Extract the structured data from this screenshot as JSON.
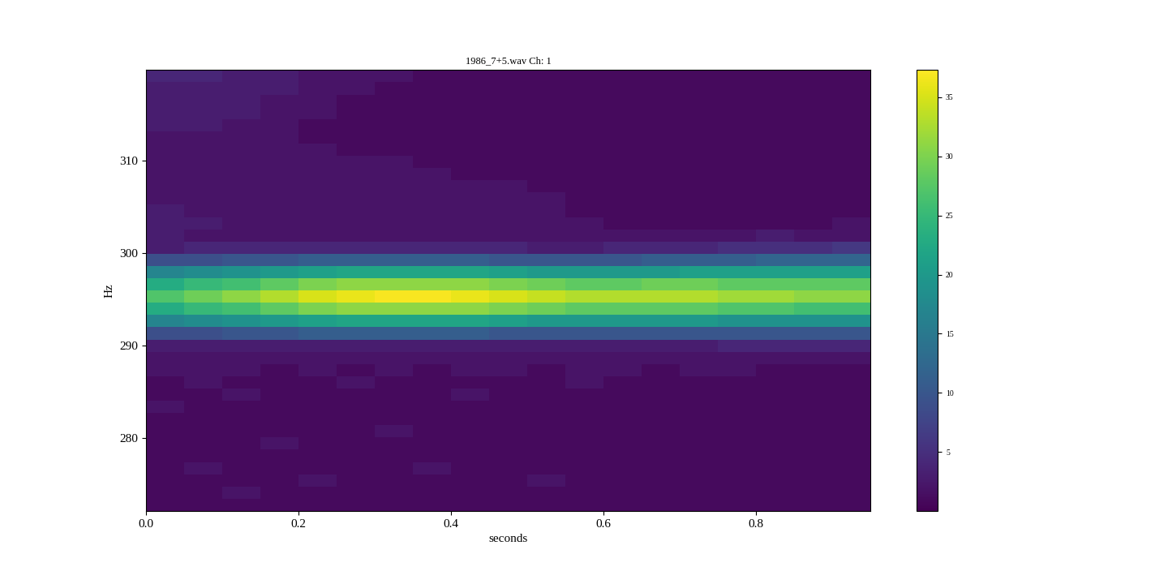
{
  "chart_data": {
    "type": "heatmap",
    "title": "1986_7+5.wav Ch: 1",
    "x_label": "seconds",
    "y_label": "Hz",
    "x_edges": [
      0.0,
      0.05,
      0.1,
      0.15,
      0.2,
      0.25,
      0.3,
      0.35,
      0.4,
      0.45,
      0.5,
      0.55,
      0.6,
      0.65,
      0.7,
      0.75,
      0.8,
      0.85,
      0.9,
      0.95
    ],
    "y_edges": [
      272.1,
      273.43,
      274.75,
      276.08,
      277.4,
      278.73,
      280.05,
      281.38,
      282.7,
      284.03,
      285.35,
      286.68,
      288.0,
      289.33,
      290.65,
      291.98,
      293.3,
      294.63,
      295.95,
      297.28,
      298.6,
      299.93,
      301.25,
      302.58,
      303.9,
      305.23,
      306.55,
      307.88,
      309.2,
      310.53,
      311.85,
      313.18,
      314.5,
      315.83,
      317.15,
      318.48,
      319.8
    ],
    "cells": [
      [
        1,
        1,
        1,
        1,
        1,
        1,
        1,
        1,
        1,
        1,
        1,
        1,
        1,
        1,
        1,
        1,
        1,
        1,
        1
      ],
      [
        1,
        1,
        2,
        1,
        1,
        1,
        1,
        1,
        1,
        1,
        1,
        1,
        1,
        1,
        1,
        1,
        1,
        1,
        1
      ],
      [
        1,
        1,
        1,
        1,
        2,
        1,
        1,
        1,
        1,
        1,
        2,
        1,
        1,
        1,
        1,
        1,
        1,
        1,
        1
      ],
      [
        1,
        2,
        1,
        1,
        1,
        1,
        1,
        2,
        1,
        1,
        1,
        1,
        1,
        1,
        1,
        1,
        1,
        1,
        1
      ],
      [
        1,
        1,
        1,
        1,
        1,
        1,
        1,
        1,
        1,
        1,
        1,
        1,
        1,
        1,
        1,
        1,
        1,
        1,
        1
      ],
      [
        1,
        1,
        1,
        2,
        1,
        1,
        1,
        1,
        1,
        1,
        1,
        1,
        1,
        1,
        1,
        1,
        1,
        1,
        1
      ],
      [
        1,
        1,
        1,
        1,
        1,
        1,
        2,
        1,
        1,
        1,
        1,
        1,
        1,
        1,
        1,
        1,
        1,
        1,
        1
      ],
      [
        1,
        1,
        1,
        1,
        1,
        1,
        1,
        1,
        1,
        1,
        1,
        1,
        1,
        1,
        1,
        1,
        1,
        1,
        1
      ],
      [
        2,
        1,
        1,
        1,
        1,
        1,
        1,
        1,
        1,
        1,
        1,
        1,
        1,
        1,
        1,
        1,
        1,
        1,
        1
      ],
      [
        1,
        1,
        2,
        1,
        1,
        1,
        1,
        1,
        2,
        1,
        1,
        1,
        1,
        1,
        1,
        1,
        1,
        1,
        1
      ],
      [
        1,
        2,
        1,
        1,
        1,
        2,
        1,
        1,
        1,
        1,
        1,
        2,
        1,
        1,
        1,
        1,
        1,
        1,
        1
      ],
      [
        2,
        2,
        2,
        1,
        2,
        1,
        2,
        1,
        2,
        2,
        1,
        2,
        2,
        1,
        2,
        2,
        1,
        1,
        1
      ],
      [
        2,
        2,
        2,
        2,
        2,
        2,
        2,
        2,
        2,
        2,
        2,
        2,
        2,
        2,
        2,
        2,
        2,
        2,
        2
      ],
      [
        3,
        3,
        3,
        3,
        3,
        3,
        3,
        3,
        3,
        3,
        3,
        3,
        3,
        3,
        3,
        4,
        4,
        4,
        4
      ],
      [
        9,
        9,
        10,
        10,
        11,
        11,
        11,
        11,
        11,
        10,
        10,
        10,
        10,
        10,
        10,
        10,
        10,
        10,
        10
      ],
      [
        17,
        18,
        19,
        20,
        21,
        22,
        22,
        22,
        22,
        21,
        20,
        20,
        20,
        20,
        20,
        19,
        19,
        19,
        19
      ],
      [
        23,
        25,
        26,
        28,
        30,
        31,
        31,
        31,
        31,
        30,
        29,
        28,
        28,
        28,
        28,
        27,
        27,
        26,
        26
      ],
      [
        27,
        29,
        31,
        33,
        35,
        36,
        37,
        37,
        36,
        35,
        34,
        33,
        33,
        33,
        33,
        32,
        32,
        31,
        31
      ],
      [
        23,
        25,
        26,
        28,
        30,
        31,
        31,
        31,
        31,
        30,
        29,
        28,
        28,
        29,
        29,
        28,
        28,
        28,
        28
      ],
      [
        17,
        18,
        19,
        20,
        21,
        22,
        22,
        22,
        22,
        21,
        20,
        20,
        20,
        20,
        21,
        21,
        21,
        21,
        21
      ],
      [
        9,
        9,
        10,
        10,
        11,
        11,
        11,
        11,
        11,
        10,
        10,
        10,
        10,
        11,
        11,
        11,
        12,
        12,
        12
      ],
      [
        3,
        4,
        4,
        4,
        4,
        4,
        4,
        4,
        4,
        4,
        3,
        3,
        4,
        4,
        4,
        5,
        5,
        5,
        6
      ],
      [
        3,
        2,
        2,
        2,
        2,
        2,
        2,
        2,
        2,
        2,
        2,
        2,
        2,
        2,
        2,
        2,
        3,
        2,
        2
      ],
      [
        3,
        3,
        2,
        2,
        2,
        2,
        2,
        2,
        2,
        2,
        2,
        2,
        1,
        1,
        1,
        1,
        1,
        1,
        2
      ],
      [
        3,
        2,
        2,
        2,
        2,
        2,
        2,
        2,
        2,
        2,
        2,
        1,
        1,
        1,
        1,
        1,
        1,
        1,
        1
      ],
      [
        2,
        2,
        2,
        2,
        2,
        2,
        2,
        2,
        2,
        2,
        2,
        1,
        1,
        1,
        1,
        1,
        1,
        1,
        1
      ],
      [
        2,
        2,
        2,
        2,
        2,
        2,
        2,
        2,
        2,
        2,
        1,
        1,
        1,
        1,
        1,
        1,
        1,
        1,
        1
      ],
      [
        2,
        2,
        2,
        2,
        2,
        2,
        2,
        2,
        1,
        1,
        1,
        1,
        1,
        1,
        1,
        1,
        1,
        1,
        1
      ],
      [
        2,
        2,
        2,
        2,
        2,
        2,
        2,
        1,
        1,
        1,
        1,
        1,
        1,
        1,
        1,
        1,
        1,
        1,
        1
      ],
      [
        2,
        2,
        2,
        2,
        2,
        1,
        1,
        1,
        1,
        1,
        1,
        1,
        1,
        1,
        1,
        1,
        1,
        1,
        1
      ],
      [
        2,
        2,
        2,
        2,
        1,
        1,
        1,
        1,
        1,
        1,
        1,
        1,
        1,
        1,
        1,
        1,
        1,
        1,
        1
      ],
      [
        3,
        3,
        2,
        2,
        1,
        1,
        1,
        1,
        1,
        1,
        1,
        1,
        1,
        1,
        1,
        1,
        1,
        1,
        1
      ],
      [
        3,
        3,
        3,
        2,
        2,
        1,
        1,
        1,
        1,
        1,
        1,
        1,
        1,
        1,
        1,
        1,
        1,
        1,
        1
      ],
      [
        3,
        3,
        3,
        2,
        2,
        1,
        1,
        1,
        1,
        1,
        1,
        1,
        1,
        1,
        1,
        1,
        1,
        1,
        1
      ],
      [
        3,
        3,
        3,
        3,
        2,
        2,
        1,
        1,
        1,
        1,
        1,
        1,
        1,
        1,
        1,
        1,
        1,
        1,
        1
      ],
      [
        4,
        4,
        3,
        3,
        2,
        2,
        2,
        1,
        1,
        1,
        1,
        1,
        1,
        1,
        1,
        1,
        1,
        1,
        1
      ]
    ],
    "xlim": [
      0,
      0.95
    ],
    "ylim": [
      272.1,
      319.8
    ],
    "xticks": [
      {
        "value": 0,
        "label": "0.0"
      },
      0.2,
      0.4,
      0.6,
      0.8
    ],
    "yticks": [
      280,
      290,
      300,
      310
    ],
    "colorbar": {
      "range": [
        0,
        37.3
      ],
      "ticks": [
        5,
        10,
        15,
        20,
        25,
        30,
        35
      ]
    }
  }
}
